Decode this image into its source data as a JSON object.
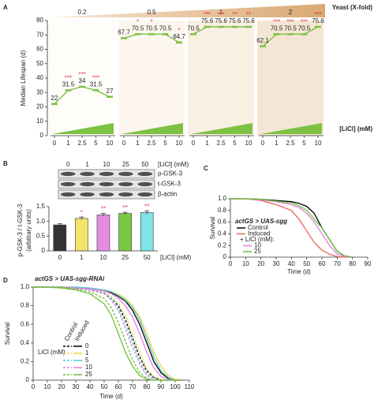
{
  "chart_data": [
    {
      "type": "segmented-line",
      "panel": "A",
      "y_label": "Median Lifespan (d)",
      "group_title": "Yeast (X-fold)",
      "x_title": "[LiCl] (mM)",
      "categories": [
        "0",
        "1",
        "2.5",
        "5",
        "10"
      ],
      "ylim": [
        0,
        80
      ],
      "yticks": [
        0,
        10,
        20,
        30,
        40,
        50,
        60,
        70,
        80
      ],
      "color": "#7dc242",
      "star_color": "#e8343a",
      "group_color": "#c8873a",
      "groups": [
        {
          "name": "0.2",
          "values": [
            22,
            31.5,
            34,
            31.5,
            27
          ],
          "stars": [
            null,
            "***",
            "***",
            "***",
            null
          ]
        },
        {
          "name": "0.5",
          "values": [
            67.7,
            70.5,
            70.5,
            70.5,
            64.7
          ],
          "stars": [
            null,
            "*",
            "*",
            null,
            "*"
          ]
        },
        {
          "name": "1",
          "values": [
            70.5,
            75.6,
            75.6,
            75.6,
            75.6
          ],
          "stars": [
            null,
            "***",
            "***",
            "**",
            "**"
          ]
        },
        {
          "name": "2",
          "values": [
            62.1,
            70.5,
            70.5,
            70.5,
            75.6
          ],
          "stars": [
            null,
            "***",
            "***",
            "***",
            "***"
          ]
        }
      ]
    },
    {
      "type": "bar",
      "panel": "B",
      "blot_title": "[LiCl] (mM)",
      "blot_rows": [
        "p-GSK-3",
        "t-GSK-3",
        "β-actin"
      ],
      "y_label": "p-GSK-3 / t-GSK-3",
      "y_label_sub": "(arbitrary units)",
      "x_title": "[LiCl] (mM)",
      "categories": [
        "0",
        "1",
        "10",
        "25",
        "50"
      ],
      "values": [
        0.88,
        1.1,
        1.22,
        1.27,
        1.3
      ],
      "errors": [
        0.04,
        0.05,
        0.05,
        0.04,
        0.06
      ],
      "colors": [
        "#333333",
        "#f5e26b",
        "#e48de0",
        "#7ac943",
        "#7fe3e8"
      ],
      "stars": [
        null,
        "*",
        "**",
        "**",
        "**"
      ],
      "star_color": "#e8343a",
      "ylim": [
        0,
        1.5
      ],
      "yticks": [
        0,
        0.5,
        {
          "value": 1,
          "label": "1.0"
        },
        1.5
      ]
    },
    {
      "type": "line",
      "panel": "C",
      "title": "actGS > UAS-sgg",
      "x_label": "Time (d)",
      "y_label": "Survival",
      "legend_subtitle": "+ LiCl (mM):",
      "x": [
        0,
        10,
        20,
        30,
        40,
        45,
        50,
        55,
        60,
        65,
        70,
        75,
        80
      ],
      "series": [
        {
          "name": "Control",
          "color": "#000000",
          "values": [
            1,
            1,
            0.99,
            0.97,
            0.95,
            0.92,
            0.87,
            0.75,
            0.5,
            0.3,
            0.1,
            0.02,
            0
          ]
        },
        {
          "name": "Induced",
          "color": "#e8625a",
          "values": [
            1,
            1,
            0.97,
            0.9,
            0.8,
            0.65,
            0.45,
            0.25,
            0.12,
            0.05,
            0.01,
            0,
            0
          ]
        },
        {
          "name": "10",
          "color": "#e87de0",
          "values": [
            1,
            1,
            0.98,
            0.95,
            0.9,
            0.85,
            0.75,
            0.6,
            0.4,
            0.2,
            0.05,
            0.01,
            0
          ]
        },
        {
          "name": "25",
          "color": "#6cc13a",
          "values": [
            1,
            1,
            0.99,
            0.96,
            0.93,
            0.88,
            0.8,
            0.65,
            0.5,
            0.3,
            0.1,
            0.02,
            0
          ]
        }
      ],
      "xlim": [
        0,
        90
      ],
      "xticks": [
        0,
        10,
        20,
        30,
        40,
        50,
        60,
        70,
        80,
        90
      ],
      "ylim": [
        0,
        1
      ],
      "yticks": [
        0,
        0.2,
        0.4,
        0.6,
        0.8,
        {
          "value": 1,
          "label": "1.0"
        }
      ]
    },
    {
      "type": "line-grouped",
      "panel": "D",
      "title": "actGS > UAS-sgg-RNAi",
      "x_label": "Time (d)",
      "y_label": "Survival",
      "legend_title": "LiCl (mM)",
      "group_labels": [
        "Control",
        "Induced"
      ],
      "line_styles": [
        "dashed",
        "solid"
      ],
      "levels": [
        {
          "name": "0",
          "color": "#000000"
        },
        {
          "name": "1",
          "color": "#f2d23c"
        },
        {
          "name": "5",
          "color": "#4fc9d9"
        },
        {
          "name": "10",
          "color": "#e87de0"
        },
        {
          "name": "25",
          "color": "#6cc13a"
        }
      ],
      "x": [
        0,
        10,
        20,
        30,
        40,
        50,
        55,
        60,
        65,
        70,
        75,
        80,
        85,
        90,
        95,
        100,
        105
      ],
      "series": [
        {
          "level": 0,
          "group": 0,
          "values": [
            1,
            1,
            1,
            0.99,
            0.97,
            0.93,
            0.88,
            0.8,
            0.65,
            0.45,
            0.25,
            0.1,
            0.03,
            0,
            0,
            0,
            0
          ]
        },
        {
          "level": 0,
          "group": 1,
          "values": [
            1,
            1,
            1,
            0.99,
            0.98,
            0.96,
            0.94,
            0.9,
            0.85,
            0.75,
            0.6,
            0.4,
            0.2,
            0.08,
            0.02,
            0,
            0
          ]
        },
        {
          "level": 1,
          "group": 0,
          "values": [
            1,
            1,
            1,
            0.99,
            0.98,
            0.95,
            0.9,
            0.83,
            0.7,
            0.5,
            0.3,
            0.12,
            0.04,
            0.01,
            0,
            0,
            0
          ]
        },
        {
          "level": 1,
          "group": 1,
          "values": [
            1,
            1,
            1,
            1,
            0.99,
            0.97,
            0.95,
            0.92,
            0.88,
            0.8,
            0.68,
            0.5,
            0.3,
            0.15,
            0.05,
            0.01,
            0
          ]
        },
        {
          "level": 2,
          "group": 0,
          "values": [
            1,
            1,
            1,
            0.99,
            0.97,
            0.94,
            0.88,
            0.78,
            0.6,
            0.4,
            0.2,
            0.07,
            0.02,
            0,
            0,
            0,
            0
          ]
        },
        {
          "level": 2,
          "group": 1,
          "values": [
            1,
            1,
            1,
            1,
            0.99,
            0.97,
            0.95,
            0.91,
            0.86,
            0.78,
            0.65,
            0.45,
            0.25,
            0.1,
            0.03,
            0,
            0
          ]
        },
        {
          "level": 3,
          "group": 0,
          "values": [
            1,
            1,
            1,
            0.99,
            0.97,
            0.93,
            0.86,
            0.75,
            0.55,
            0.35,
            0.17,
            0.05,
            0.01,
            0,
            0,
            0,
            0
          ]
        },
        {
          "level": 3,
          "group": 1,
          "values": [
            1,
            1,
            1,
            0.99,
            0.98,
            0.96,
            0.93,
            0.88,
            0.8,
            0.68,
            0.5,
            0.3,
            0.13,
            0.04,
            0.01,
            0,
            0
          ]
        },
        {
          "level": 4,
          "group": 0,
          "values": [
            1,
            1,
            1,
            0.98,
            0.95,
            0.88,
            0.78,
            0.62,
            0.42,
            0.22,
            0.08,
            0.02,
            0,
            0,
            0,
            0,
            0
          ]
        },
        {
          "level": 4,
          "group": 1,
          "values": [
            1,
            1,
            0.99,
            0.97,
            0.93,
            0.82,
            0.7,
            0.5,
            0.3,
            0.15,
            0.05,
            0.01,
            0,
            0,
            0,
            0,
            0
          ]
        }
      ],
      "xlim": [
        0,
        110
      ],
      "xticks": [
        0,
        10,
        20,
        30,
        40,
        50,
        60,
        70,
        80,
        90,
        100,
        110
      ],
      "ylim": [
        0,
        1
      ],
      "yticks": [
        0,
        0.2,
        0.4,
        0.6,
        0.8,
        {
          "value": 1,
          "label": "1.0"
        }
      ]
    }
  ]
}
